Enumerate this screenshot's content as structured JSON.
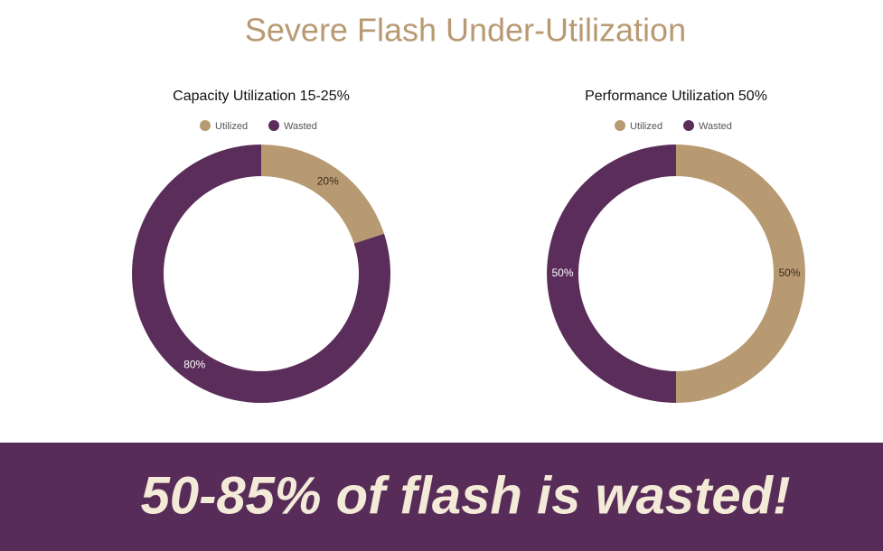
{
  "title": "Severe Flash Under-Utilization",
  "banner": "50-85% of flash is wasted!",
  "chart_data": [
    {
      "type": "pie",
      "donut": true,
      "title": "Capacity Utilization 15-25%",
      "categories": [
        "Utilized",
        "Wasted"
      ],
      "values": [
        20,
        80
      ],
      "value_labels": [
        "20%",
        "80%"
      ],
      "colors": [
        "#b89a72",
        "#5a2d5a"
      ]
    },
    {
      "type": "pie",
      "donut": true,
      "title": "Performance Utilization 50%",
      "categories": [
        "Utilized",
        "Wasted"
      ],
      "values": [
        50,
        50
      ],
      "value_labels": [
        "50%",
        "50%"
      ],
      "colors": [
        "#b89a72",
        "#5a2d5a"
      ]
    }
  ]
}
